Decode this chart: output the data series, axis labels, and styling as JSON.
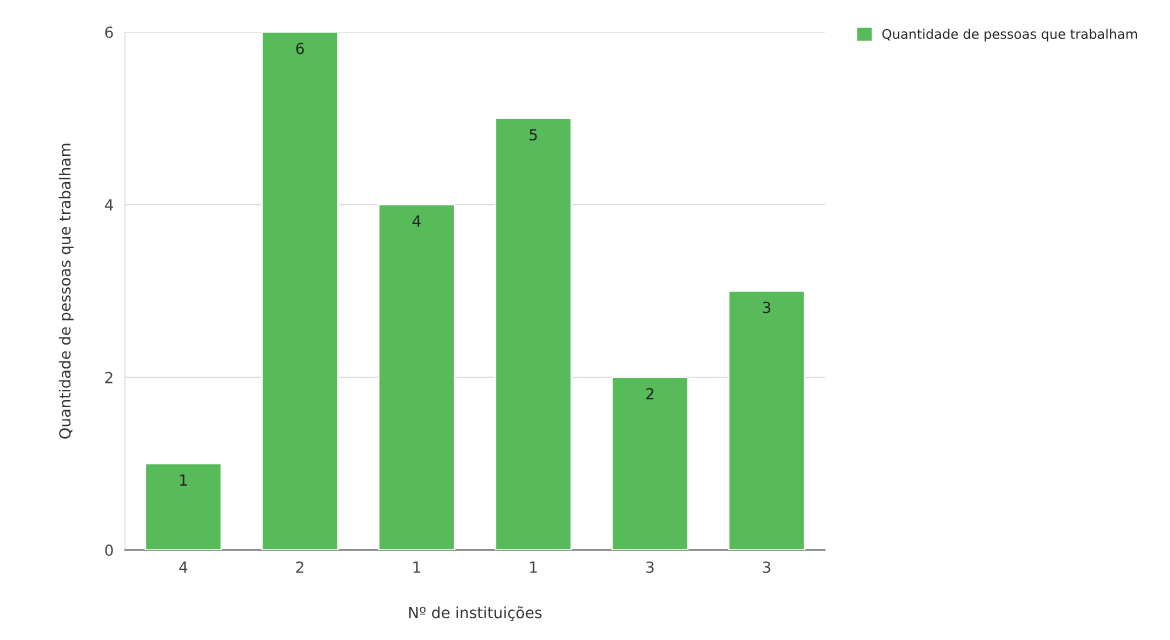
{
  "chart_data": {
    "type": "bar",
    "xlabel": "Nº de instituições",
    "ylabel": "Quantidade de pessoas que trabalham",
    "categories": [
      "4",
      "2",
      "1",
      "1",
      "3",
      "3"
    ],
    "series": [
      {
        "name": "Quantidade de pessoas que trabalham",
        "color": "#57bb5a",
        "values": [
          1,
          6,
          4,
          5,
          2,
          3
        ]
      }
    ],
    "ylim": [
      0,
      6
    ],
    "yticks": [
      0,
      2,
      4,
      6
    ],
    "grid": "y",
    "legend": "top right",
    "data_labels": true
  }
}
